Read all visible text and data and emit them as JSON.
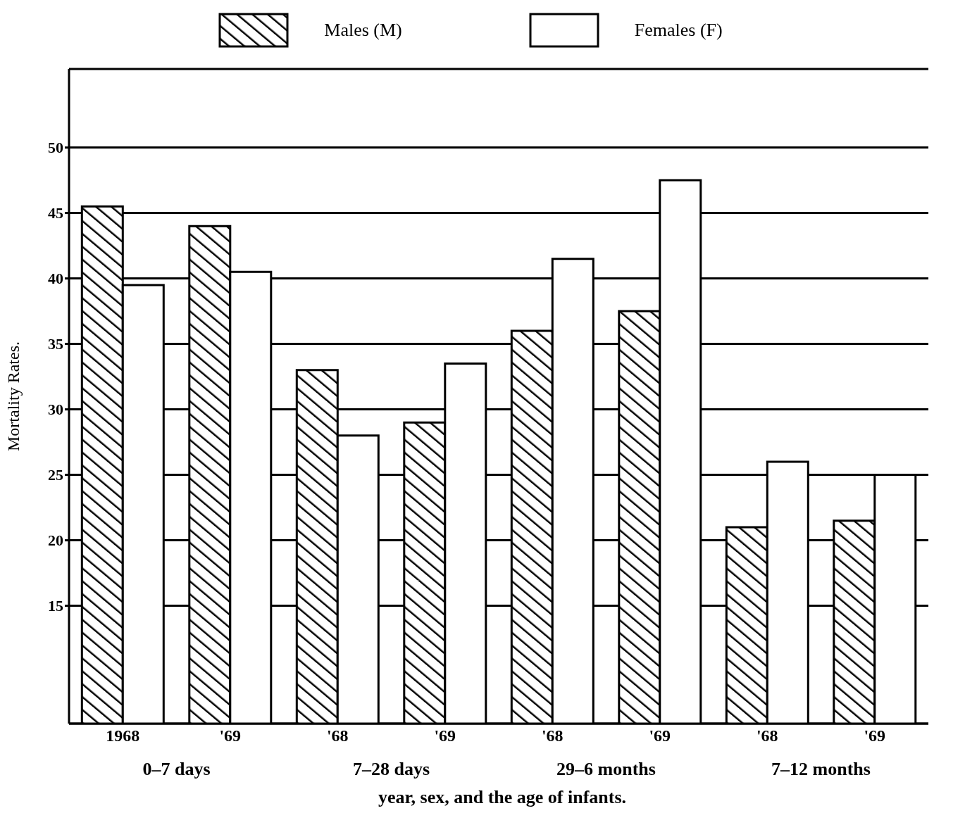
{
  "chart_data": {
    "type": "bar",
    "ylabel": "Mortality Rates.",
    "xlabel": "year, sex, and the age of infants.",
    "categories": [
      "1968",
      "'69",
      "'68",
      "'69",
      "'68",
      "'69",
      "'68",
      "'69"
    ],
    "series": [
      {
        "name": "Males (M)",
        "color": "#000000",
        "values": [
          45.5,
          44,
          33,
          29,
          36,
          37.5,
          21,
          21.5
        ]
      },
      {
        "name": "Females (F)",
        "color": "#ffffff",
        "values": [
          39.5,
          40.5,
          28,
          33.5,
          41.5,
          47.5,
          26,
          25
        ]
      }
    ],
    "annotations": [
      "0–7 days",
      "7–28 days",
      "29–6 months",
      "7–12 months"
    ],
    "ylim": [
      6,
      56
    ],
    "yticks": [
      15,
      20,
      25,
      30,
      35,
      40,
      45,
      50
    ],
    "grid": "y",
    "legend": "top"
  }
}
